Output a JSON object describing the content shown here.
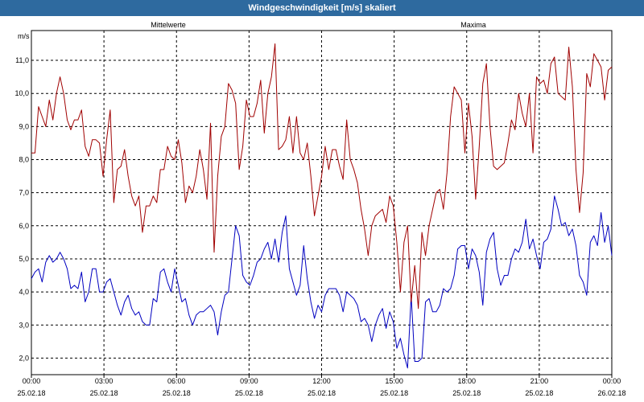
{
  "window": {
    "title": "Windgeschwindigkeit [m/s] skaliert"
  },
  "chart_data": {
    "type": "line",
    "title": "Windgeschwindigkeit [m/s] skaliert",
    "ylabel": "m/s",
    "xlabel": "",
    "ylim": [
      1.5,
      11.9
    ],
    "xlim": [
      0,
      24
    ],
    "grid": true,
    "legend": "top",
    "x_ticks": [
      {
        "time": "00:00",
        "date": "25.02.18"
      },
      {
        "time": "03:00",
        "date": "25.02.18"
      },
      {
        "time": "06:00",
        "date": "25.02.18"
      },
      {
        "time": "09:00",
        "date": "25.02.18"
      },
      {
        "time": "12:00",
        "date": "25.02.18"
      },
      {
        "time": "15:00",
        "date": "25.02.18"
      },
      {
        "time": "18:00",
        "date": "25.02.18"
      },
      {
        "time": "21:00",
        "date": "25.02.18"
      },
      {
        "time": "00:00",
        "date": "26.02.18"
      }
    ],
    "y_ticks": [
      "2,0",
      "3,0",
      "4,0",
      "5,0",
      "6,0",
      "7,0",
      "8,0",
      "9,0",
      "10,0",
      "11,0"
    ],
    "series": [
      {
        "name": "Mittelwerte",
        "color": "#0000c0",
        "values": [
          4.4,
          4.6,
          4.7,
          4.3,
          4.9,
          5.1,
          4.9,
          5.0,
          5.2,
          5.0,
          4.7,
          4.1,
          4.2,
          4.1,
          4.6,
          3.7,
          4.0,
          4.7,
          4.7,
          4.0,
          4.0,
          4.3,
          4.4,
          4.0,
          3.6,
          3.3,
          3.7,
          3.9,
          3.5,
          3.3,
          3.4,
          3.1,
          3.0,
          3.0,
          3.8,
          3.7,
          4.6,
          4.7,
          4.3,
          4.0,
          4.7,
          4.2,
          3.7,
          3.8,
          3.3,
          3.0,
          3.3,
          3.4,
          3.4,
          3.5,
          3.6,
          3.4,
          2.7,
          3.4,
          3.9,
          4.0,
          5.0,
          6.0,
          5.7,
          4.5,
          4.3,
          4.2,
          4.5,
          4.9,
          5.0,
          5.3,
          5.5,
          5.0,
          5.6,
          4.9,
          5.8,
          6.3,
          4.7,
          4.3,
          3.9,
          4.2,
          5.4,
          4.4,
          3.7,
          3.2,
          3.6,
          3.4,
          3.9,
          4.1,
          4.1,
          4.1,
          3.9,
          3.4,
          4.0,
          3.9,
          3.8,
          3.6,
          3.1,
          3.2,
          3.0,
          2.5,
          3.0,
          3.3,
          3.5,
          2.9,
          3.4,
          3.1,
          2.3,
          2.6,
          2.1,
          1.7,
          3.9,
          1.9,
          1.9,
          2.0,
          3.7,
          3.8,
          3.4,
          3.4,
          3.6,
          4.1,
          4.0,
          4.1,
          4.5,
          5.3,
          5.4,
          5.4,
          4.7,
          5.3,
          5.1,
          4.6,
          3.6,
          5.2,
          5.6,
          5.8,
          4.7,
          4.2,
          4.5,
          4.5,
          5.0,
          5.3,
          5.2,
          5.5,
          6.2,
          5.3,
          5.6,
          5.1,
          4.7,
          5.5,
          5.6,
          5.9,
          6.9,
          6.5,
          6.0,
          6.1,
          5.7,
          5.9,
          5.4,
          4.5,
          4.3,
          3.9,
          5.5,
          5.7,
          5.4,
          6.4,
          5.5,
          6.0,
          5.1
        ]
      },
      {
        "name": "Maxima",
        "color": "#a00000",
        "values": [
          8.2,
          8.2,
          9.6,
          9.3,
          9.0,
          9.8,
          9.2,
          10.0,
          10.5,
          10.0,
          9.2,
          8.9,
          9.2,
          9.2,
          9.5,
          8.4,
          8.1,
          8.6,
          8.6,
          8.5,
          7.5,
          8.6,
          9.5,
          6.7,
          7.7,
          7.8,
          8.3,
          7.5,
          6.9,
          6.6,
          6.9,
          5.8,
          6.6,
          6.6,
          6.9,
          6.7,
          7.7,
          7.7,
          8.4,
          8.1,
          8.0,
          8.6,
          7.9,
          6.7,
          7.2,
          7.0,
          7.5,
          8.3,
          7.7,
          6.8,
          9.1,
          5.2,
          7.5,
          8.7,
          9.0,
          10.3,
          10.1,
          9.7,
          7.7,
          8.4,
          9.8,
          9.3,
          9.3,
          9.7,
          10.4,
          8.8,
          10.0,
          10.5,
          11.5,
          8.3,
          8.4,
          8.6,
          9.3,
          8.2,
          9.3,
          8.2,
          8.0,
          8.5,
          7.5,
          6.3,
          6.9,
          7.5,
          8.4,
          7.7,
          8.3,
          8.3,
          7.8,
          7.4,
          9.2,
          8.0,
          7.7,
          7.3,
          6.5,
          5.9,
          5.1,
          6.0,
          6.3,
          6.4,
          6.5,
          6.1,
          6.9,
          6.6,
          5.5,
          4.0,
          5.5,
          6.0,
          3.7,
          4.8,
          3.5,
          5.8,
          5.1,
          6.0,
          6.5,
          7.0,
          7.1,
          6.5,
          7.6,
          9.3,
          10.2,
          10.0,
          9.8,
          8.2,
          9.7,
          8.7,
          6.8,
          8.4,
          10.3,
          10.9,
          9.0,
          7.8,
          7.7,
          7.8,
          7.9,
          8.5,
          9.2,
          8.9,
          10.0,
          9.4,
          9.0,
          10.0,
          8.2,
          10.5,
          10.3,
          10.4,
          10.0,
          10.9,
          11.1,
          10.0,
          9.9,
          9.8,
          11.4,
          10.2,
          7.7,
          6.4,
          7.6,
          10.6,
          10.2,
          11.2,
          11.0,
          10.8,
          9.8,
          10.7,
          10.8
        ]
      }
    ]
  }
}
